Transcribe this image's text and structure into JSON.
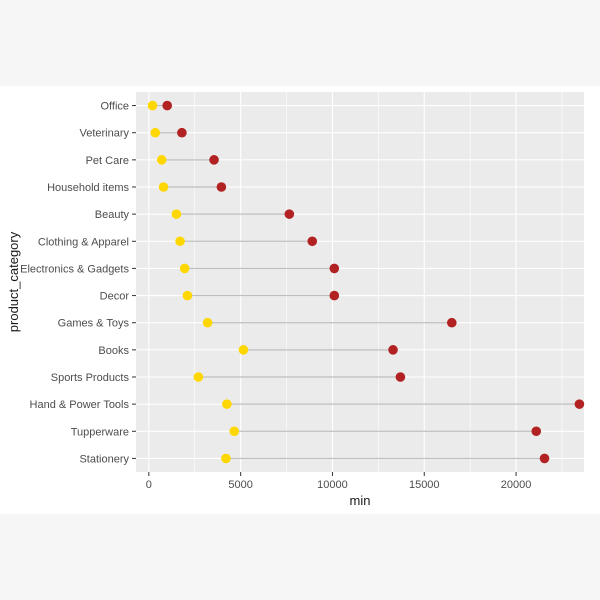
{
  "chart_data": {
    "type": "dumbbell",
    "xlabel": "min",
    "ylabel": "product_category",
    "xlim": [
      -700,
      23700
    ],
    "x_ticks": [
      0,
      5000,
      10000,
      15000,
      20000
    ],
    "x_tick_labels": [
      "0",
      "5000",
      "10000",
      "15000",
      "20000"
    ],
    "grid": true,
    "categories": [
      "Office",
      "Veterinary",
      "Pet Care",
      "Household items",
      "Beauty",
      "Clothing & Apparel",
      "Electronics & Gadgets",
      "Decor",
      "Games & Toys",
      "Books",
      "Sports Products",
      "Hand & Power Tools",
      "Tupperware",
      "Stationery"
    ],
    "series": [
      {
        "color": "#FFD700",
        "values": [
          200,
          350,
          700,
          800,
          1500,
          1700,
          1950,
          2100,
          3200,
          5150,
          2700,
          4250,
          4650,
          4200
        ]
      },
      {
        "color": "#B22222",
        "values": [
          1000,
          1800,
          3550,
          3950,
          7650,
          8900,
          10100,
          10100,
          16500,
          13300,
          13700,
          23450,
          21100,
          21550
        ]
      }
    ],
    "colors": {
      "panel": "#EBEBEB",
      "gridline": "#FFFFFF",
      "segment": "#BEBEBE"
    }
  }
}
